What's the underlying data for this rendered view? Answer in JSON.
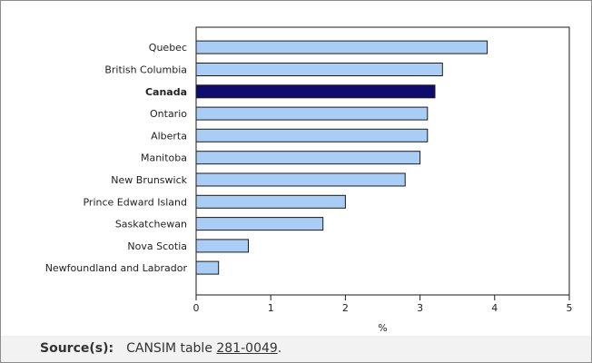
{
  "chart_data": {
    "type": "bar",
    "orientation": "horizontal",
    "categories": [
      "Quebec",
      "British Columbia",
      "Canada",
      "Ontario",
      "Alberta",
      "Manitoba",
      "New Brunswick",
      "Prince Edward Island",
      "Saskatchewan",
      "Nova Scotia",
      "Newfoundland and Labrador"
    ],
    "values": [
      3.9,
      3.3,
      3.2,
      3.1,
      3.1,
      3.0,
      2.8,
      2.0,
      1.7,
      0.7,
      0.3
    ],
    "highlight_category": "Canada",
    "xlabel": "%",
    "ylabel": "",
    "xlim": [
      0,
      5
    ],
    "xticks": [
      "0",
      "1",
      "2",
      "3",
      "4",
      "5"
    ],
    "grid": false,
    "colors": {
      "bar": "#a9cdf5",
      "highlight": "#0f0c6e",
      "bar_border": "#1a1a1a",
      "axis": "#1a1a1a",
      "text": "#222222"
    }
  },
  "source": {
    "label": "Source(s):",
    "text": "CANSIM table",
    "link": "281-0049",
    "suffix": "."
  }
}
